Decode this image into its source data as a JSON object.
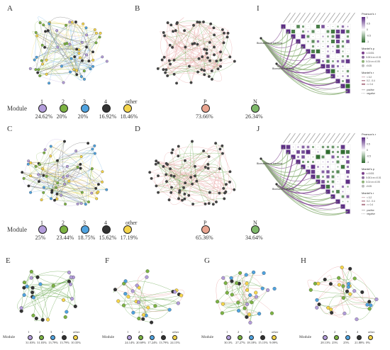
{
  "panels": {
    "A": {
      "label": "A",
      "module_title": "Module",
      "modules": [
        {
          "name": "1",
          "color": "#b39ddb",
          "pct": "24.62%"
        },
        {
          "name": "2",
          "color": "#7cb342",
          "pct": "20%"
        },
        {
          "name": "3",
          "color": "#4fa3e0",
          "pct": "20%"
        },
        {
          "name": "4",
          "color": "#333333",
          "pct": "16.92%"
        },
        {
          "name": "other",
          "color": "#f5d54a",
          "pct": "18.46%"
        }
      ]
    },
    "B": {
      "label": "B",
      "signs": [
        {
          "name": "P",
          "color": "#e9a48f",
          "pct": "73.66%"
        },
        {
          "name": "N",
          "color": "#7db869",
          "pct": "26.34%"
        }
      ]
    },
    "C": {
      "label": "C",
      "module_title": "Module",
      "modules": [
        {
          "name": "1",
          "color": "#b39ddb",
          "pct": "25%"
        },
        {
          "name": "2",
          "color": "#7cb342",
          "pct": "23.44%"
        },
        {
          "name": "3",
          "color": "#4fa3e0",
          "pct": "18.75%"
        },
        {
          "name": "4",
          "color": "#333333",
          "pct": "15.62%"
        },
        {
          "name": "other",
          "color": "#f5d54a",
          "pct": "17.19%"
        }
      ]
    },
    "D": {
      "label": "D",
      "signs": [
        {
          "name": "P",
          "color": "#e9a48f",
          "pct": "65.36%"
        },
        {
          "name": "N",
          "color": "#7db869",
          "pct": "34.64%"
        }
      ]
    },
    "E": {
      "label": "E",
      "module_title": "Module",
      "modules": [
        {
          "name": "1",
          "color": "#b39ddb",
          "pct": "31.03%"
        },
        {
          "name": "2",
          "color": "#7cb342",
          "pct": "31.03%"
        },
        {
          "name": "3",
          "color": "#4fa3e0",
          "pct": "13.79%"
        },
        {
          "name": "4",
          "color": "#333333",
          "pct": "13.79%"
        },
        {
          "name": "other",
          "color": "#f5d54a",
          "pct": "10.35%"
        }
      ]
    },
    "F": {
      "label": "F",
      "module_title": "Module",
      "modules": [
        {
          "name": "1",
          "color": "#b39ddb",
          "pct": "24.14%"
        },
        {
          "name": "2",
          "color": "#7cb342",
          "pct": "20.69%"
        },
        {
          "name": "3",
          "color": "#4fa3e0",
          "pct": "17.24%"
        },
        {
          "name": "4",
          "color": "#333333",
          "pct": "13.79%"
        },
        {
          "name": "other",
          "color": "#f5d54a",
          "pct": "24.15%"
        }
      ]
    },
    "G": {
      "label": "G",
      "module_title": "Module",
      "modules": [
        {
          "name": "1",
          "color": "#b39ddb",
          "pct": "30.3%"
        },
        {
          "name": "2",
          "color": "#7cb342",
          "pct": "27.27%"
        },
        {
          "name": "3",
          "color": "#4fa3e0",
          "pct": "18.18%"
        },
        {
          "name": "4",
          "color": "#333333",
          "pct": "15.15%"
        },
        {
          "name": "other",
          "color": "#f5d54a",
          "pct": "9.09%"
        }
      ]
    },
    "H": {
      "label": "H",
      "module_title": "Module",
      "modules": [
        {
          "name": "1",
          "color": "#b39ddb",
          "pct": "28.13%"
        },
        {
          "name": "2",
          "color": "#7cb342",
          "pct": "25%"
        },
        {
          "name": "3",
          "color": "#4fa3e0",
          "pct": "25%"
        },
        {
          "name": "4",
          "color": "#333333",
          "pct": "21.88%"
        },
        {
          "name": "other",
          "color": "#f5d54a",
          "pct": "0%"
        }
      ]
    },
    "I": {
      "label": "I",
      "left_labels": [
        "Biomarkers of bacteria",
        "Biomarkers of fungi"
      ],
      "colorbar_title": "Pearson's r",
      "colorbar_ticks": [
        "1",
        "0.5",
        "0",
        "-0.5",
        "-1"
      ],
      "mantel_p_title": "Mantel's p",
      "mantel_p_items": [
        "<=0.001",
        "0.001<x<=0.01",
        "0.01<x<=0.05",
        ">0.05"
      ],
      "mantel_r_title": "Mantel's r",
      "mantel_r_items": [
        "< 0.2",
        "0.2 - 0.4",
        ">= 0.4"
      ],
      "sign_items": [
        "positive",
        "negative"
      ]
    },
    "J": {
      "label": "J",
      "left_labels": [
        "Biomarkers of bacteria",
        "Biomarkers of fungi"
      ],
      "colorbar_title": "Pearson's r",
      "colorbar_ticks": [
        "1",
        "0.5",
        "0",
        "-0.5",
        "-1"
      ],
      "mantel_p_title": "Mantel's p",
      "mantel_p_items": [
        "<=0.001",
        "0.001<x<=0.01",
        "0.01<x<=0.05",
        ">0.05"
      ],
      "mantel_r_title": "Mantel's r",
      "mantel_r_items": [
        "< 0.2",
        "0.2 - 0.4",
        ">= 0.4"
      ],
      "sign_items": [
        "positive",
        "negative"
      ]
    }
  },
  "colors": {
    "module1": "#b39ddb",
    "module2": "#7cb342",
    "module3": "#4fa3e0",
    "module4": "#333333",
    "other": "#f5d54a",
    "positive_edge": "#e8a0a0",
    "negative_edge": "#6aa84f",
    "node_grey": "#666666",
    "heat_high": "#5b2c83",
    "heat_low": "#2e6b2e",
    "mantel_line_a": "#7b3f8c",
    "mantel_line_b": "#8fb37a"
  }
}
